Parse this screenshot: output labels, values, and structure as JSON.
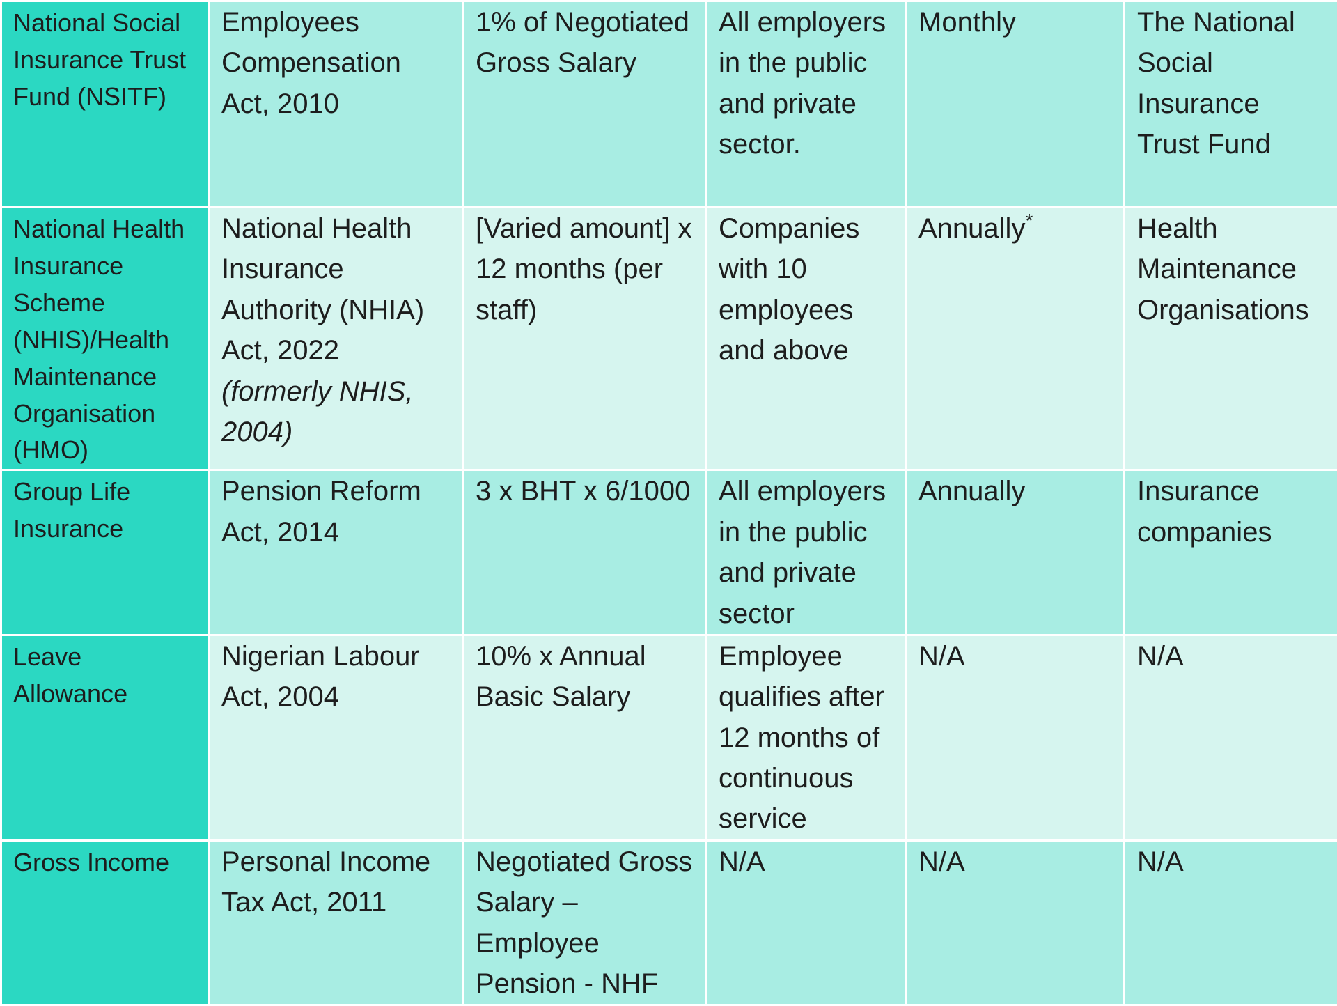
{
  "rows": [
    {
      "scheme": "National Social Insurance Trust Fund (NSITF)",
      "law": "Employees Compensation Act, 2010",
      "law_note": "",
      "computation": "1% of Negotiated Gross Salary",
      "applies_to": "All employers in the public and private sector.",
      "frequency": "Monthly",
      "frequency_mark": "",
      "administrator": "The National Social Insurance Trust Fund"
    },
    {
      "scheme": "National Health Insurance Scheme (NHIS)/Health Maintenance Organisation (HMO)",
      "law": "National Health Insurance Authority (NHIA) Act, 2022",
      "law_note": "(formerly NHIS, 2004)",
      "computation": "[Varied amount] x 12 months (per staff)",
      "applies_to": "Companies with 10 employees and above",
      "frequency": "Annually",
      "frequency_mark": "*",
      "administrator": "Health Maintenance Organisations"
    },
    {
      "scheme": "Group Life Insurance",
      "law": "Pension Reform Act, 2014",
      "law_note": "",
      "computation": "3 x BHT x 6/1000",
      "applies_to": "All employers in the public and private sector",
      "frequency": "Annually",
      "frequency_mark": "",
      "administrator": "Insurance companies"
    },
    {
      "scheme": "Leave Allowance",
      "law": "Nigerian Labour Act, 2004",
      "law_note": "",
      "computation": "10% x Annual Basic Salary",
      "applies_to": "Employee qualifies after 12 months of continuous service",
      "frequency": "N/A",
      "frequency_mark": "",
      "administrator": "N/A"
    },
    {
      "scheme": "Gross Income",
      "law": "Personal Income Tax Act, 2011",
      "law_note": "",
      "computation": "Negotiated Gross Salary – Employee Pension - NHF",
      "applies_to": "N/A",
      "frequency": "N/A",
      "frequency_mark": "",
      "administrator": "N/A"
    }
  ]
}
